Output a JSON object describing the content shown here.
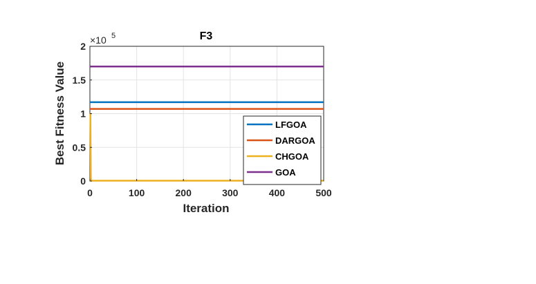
{
  "chart_data": {
    "type": "line",
    "title": "F3",
    "xlabel": "Iteration",
    "ylabel": "Best Fitness Value",
    "xlim": [
      0,
      500
    ],
    "ylim": [
      0,
      200000
    ],
    "xticks": [
      0,
      100,
      200,
      300,
      400,
      500
    ],
    "yticks": [
      0,
      50000,
      100000,
      150000,
      200000
    ],
    "xtick_labels": [
      "0",
      "100",
      "200",
      "300",
      "400",
      "500"
    ],
    "ytick_labels": [
      "0",
      "0.5",
      "1",
      "1.5",
      "2"
    ],
    "y_exponent_base": "×10",
    "y_exponent_power": "5",
    "grid": true,
    "legend_position": "bottom-right",
    "series": [
      {
        "name": "LFGOA",
        "color": "#0072BD",
        "x": [
          0,
          500
        ],
        "y": [
          117000,
          117000
        ]
      },
      {
        "name": "DARGOA",
        "color": "#D95319",
        "x": [
          0,
          500
        ],
        "y": [
          107000,
          107000
        ]
      },
      {
        "name": "CHGOA",
        "color": "#EDB120",
        "x": [
          0,
          1,
          2,
          3,
          500
        ],
        "y": [
          100000,
          100000,
          3000,
          500,
          500
        ]
      },
      {
        "name": "GOA",
        "color": "#7E2F8E",
        "x": [
          0,
          500
        ],
        "y": [
          170000,
          170000
        ]
      }
    ]
  }
}
